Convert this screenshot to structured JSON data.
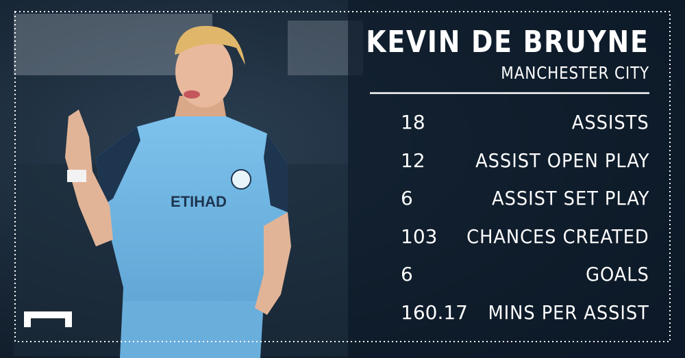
{
  "header": {
    "name": "KEVIN DE BRUYNE",
    "club": "MANCHESTER CITY"
  },
  "stats": [
    {
      "value": "18",
      "label": "ASSISTS"
    },
    {
      "value": "12",
      "label": "ASSIST OPEN PLAY"
    },
    {
      "value": "6",
      "label": "ASSIST SET PLAY"
    },
    {
      "value": "103",
      "label": "CHANCES CREATED"
    },
    {
      "value": "6",
      "label": "GOALS"
    },
    {
      "value": "160.17",
      "label": "MINS PER ASSIST"
    }
  ]
}
